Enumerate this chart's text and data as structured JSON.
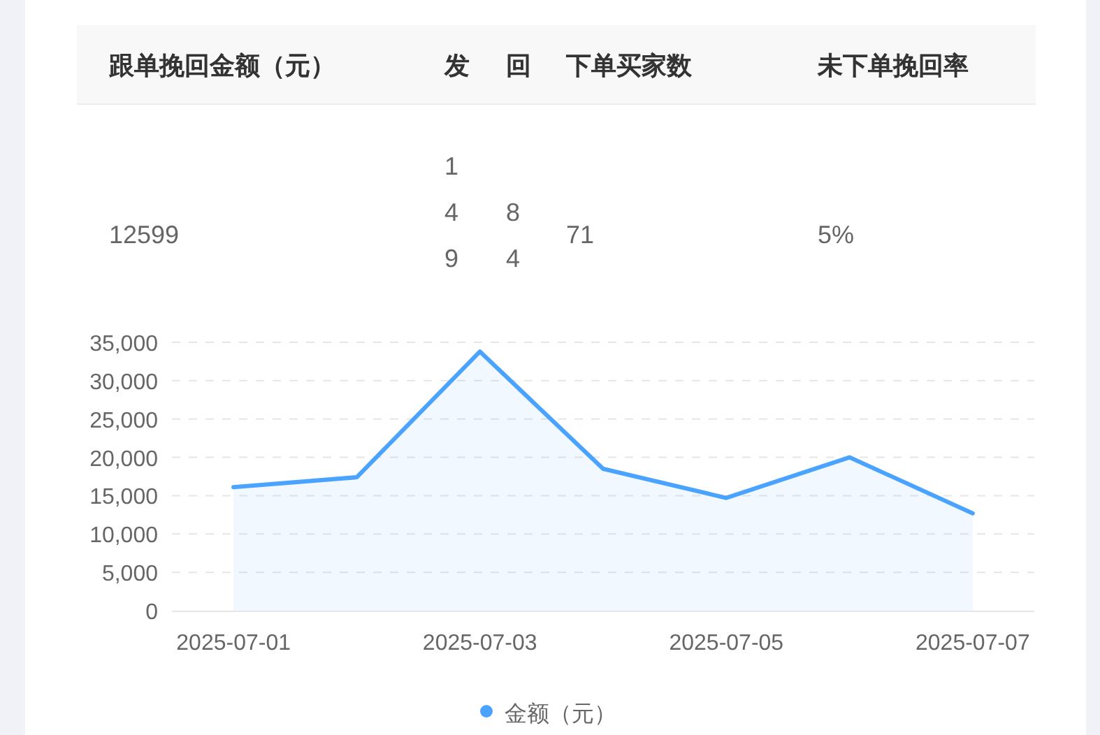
{
  "chart_data": [
    {
      "type": "other",
      "categories": [
        "跟单挽回金额（元）",
        "发",
        "回",
        "下单买家数",
        "未下单挽回率"
      ],
      "value_labels": [
        "12599",
        "149",
        "84",
        "71",
        "5%"
      ]
    },
    {
      "type": "area",
      "categories": [
        "2025-07-01",
        null,
        "2025-07-03",
        null,
        "2025-07-05",
        null,
        "2025-07-07"
      ],
      "series": [
        {
          "name": "金额（元）",
          "color": "#4aa3ff",
          "values": [
            16100,
            17400,
            33800,
            18500,
            14700,
            20000,
            12700
          ]
        }
      ],
      "ylim": [
        0,
        35000
      ],
      "yticks": [
        {
          "value": 0,
          "label": "0"
        },
        {
          "value": 5000,
          "label": "5,000"
        },
        {
          "value": 10000,
          "label": "10,000"
        },
        {
          "value": 15000,
          "label": "15,000"
        },
        {
          "value": 20000,
          "label": "20,000"
        },
        {
          "value": 25000,
          "label": "25,000"
        },
        {
          "value": 30000,
          "label": "30,000"
        },
        {
          "value": 35000,
          "label": "35,000"
        }
      ],
      "grid": "y",
      "legend": "bottom",
      "marker": "none",
      "line_style": "solid"
    }
  ]
}
